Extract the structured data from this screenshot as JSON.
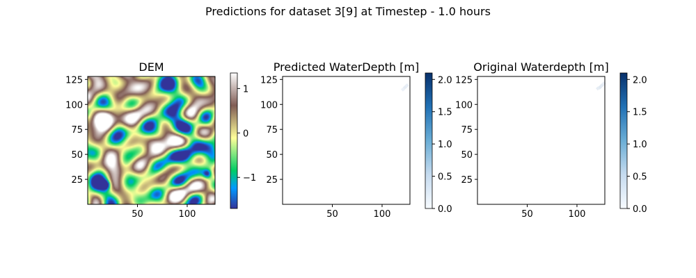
{
  "figure": {
    "suptitle": "Predictions for dataset 3[9] at Timestep - 1.0 hours"
  },
  "chart_data": [
    {
      "type": "heatmap",
      "title": "DEM",
      "xlabel": "",
      "ylabel": "",
      "xlim": [
        0,
        128
      ],
      "ylim": [
        0,
        128
      ],
      "xticks": [
        50,
        100
      ],
      "yticks": [
        25,
        50,
        75,
        100,
        125
      ],
      "colormap": "terrain",
      "colorbar": {
        "range": [
          -1.7,
          1.35
        ],
        "ticks": [
          -1,
          0,
          1
        ],
        "tick_labels": [
          "−1",
          "0",
          "1"
        ]
      },
      "description_values": "smooth random terrain field, mean approx 0; lowest points (approx -1.6) near (18,19) and (120,30)"
    },
    {
      "type": "heatmap",
      "title": "Predicted WaterDepth [m]",
      "xlabel": "",
      "ylabel": "",
      "xlim": [
        0,
        128
      ],
      "ylim": [
        0,
        128
      ],
      "xticks": [
        50,
        100
      ],
      "yticks": [
        25,
        50,
        75,
        100,
        125
      ],
      "colormap": "Blues",
      "colorbar": {
        "range": [
          0,
          2.1
        ],
        "ticks": [
          0.0,
          0.5,
          1.0,
          1.5,
          2.0
        ],
        "tick_labels": [
          "0.0",
          "0.5",
          "1.0",
          "1.5",
          "2.0"
        ]
      },
      "cells": [
        {
          "x": 123,
          "y": 117,
          "value": 0.15
        },
        {
          "x": 125,
          "y": 119,
          "value": 0.12
        },
        {
          "x": 121,
          "y": 115,
          "value": 0.1
        }
      ]
    },
    {
      "type": "heatmap",
      "title": "Original Waterdepth [m]",
      "xlabel": "",
      "ylabel": "",
      "xlim": [
        0,
        128
      ],
      "ylim": [
        0,
        128
      ],
      "xticks": [
        50,
        100
      ],
      "yticks": [
        25,
        50,
        75,
        100,
        125
      ],
      "colormap": "Blues",
      "colorbar": {
        "range": [
          0,
          2.1
        ],
        "ticks": [
          0.0,
          0.5,
          1.0,
          1.5,
          2.0
        ],
        "tick_labels": [
          "0.0",
          "0.5",
          "1.0",
          "1.5",
          "2.0"
        ]
      },
      "cells": [
        {
          "x": 123,
          "y": 117,
          "value": 0.2
        },
        {
          "x": 125,
          "y": 119,
          "value": 0.18
        },
        {
          "x": 121,
          "y": 116,
          "value": 0.15
        },
        {
          "x": 127,
          "y": 121,
          "value": 0.1
        }
      ]
    }
  ]
}
